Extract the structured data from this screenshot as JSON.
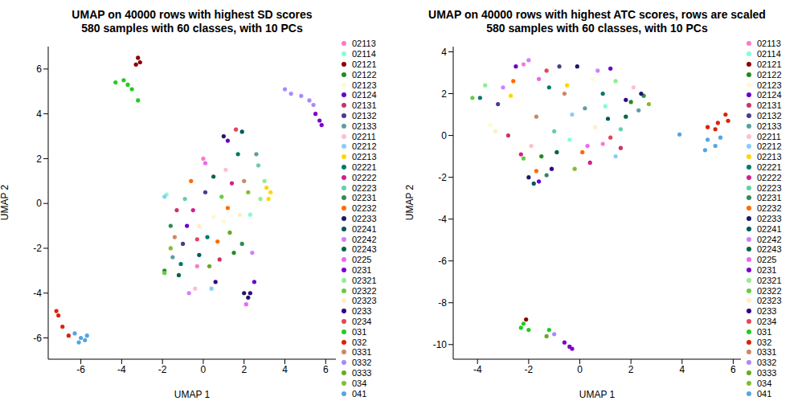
{
  "chart_data": [
    {
      "type": "scatter",
      "title": "UMAP on 40000 rows with highest SD scores",
      "subtitle": "580 samples with 60 classes, with 10 PCs",
      "x_label": "UMAP 1",
      "y_label": "UMAP 2",
      "xlim": [
        -7.6,
        6.5
      ],
      "ylim": [
        -6.95,
        7.0
      ],
      "xticks": [
        -6,
        -4,
        -2,
        0,
        2,
        4,
        6
      ],
      "yticks": [
        -6,
        -4,
        -2,
        0,
        2,
        4,
        6
      ],
      "legend": "right",
      "marker": "circle",
      "series": [
        {
          "name": "02113",
          "color": "#ff77cc",
          "x": [
            0.0,
            -0.3
          ],
          "y": [
            2.0,
            -2.8
          ]
        },
        {
          "name": "02114",
          "color": "#7fffd4",
          "x": [
            2.3,
            -1.8
          ],
          "y": [
            -0.5,
            0.4
          ]
        },
        {
          "name": "02121",
          "color": "#8b0000",
          "x": [
            -3.2,
            -3.3,
            -3.1
          ],
          "y": [
            6.5,
            6.2,
            6.3
          ]
        },
        {
          "name": "02122",
          "color": "#228b22",
          "x": [
            -1.9,
            1.5
          ],
          "y": [
            -3.0,
            -2.2
          ]
        },
        {
          "name": "02123",
          "color": "#fffacd",
          "x": [
            0.5,
            1.0
          ],
          "y": [
            -0.6,
            -0.8
          ]
        },
        {
          "name": "02124",
          "color": "#6600cc",
          "x": [
            1.2,
            -0.8,
            2.5
          ],
          "y": [
            2.8,
            -1.0,
            -3.5
          ]
        },
        {
          "name": "02131",
          "color": "#cc3366",
          "x": [
            0.8,
            -1.3
          ],
          "y": [
            -2.5,
            -0.3
          ]
        },
        {
          "name": "02132",
          "color": "#483d8b",
          "x": [
            -1.0,
            0.1
          ],
          "y": [
            -1.8,
            0.5
          ]
        },
        {
          "name": "02133",
          "color": "#5f9ea0",
          "x": [
            2.6,
            -1.5
          ],
          "y": [
            2.2,
            -2.4
          ]
        },
        {
          "name": "02211",
          "color": "#ffc0cb",
          "x": [
            1.1,
            -0.4
          ],
          "y": [
            1.5,
            -3.8
          ]
        },
        {
          "name": "02212",
          "color": "#87cefa",
          "x": [
            -1.9,
            0.4
          ],
          "y": [
            0.3,
            -3.8
          ]
        },
        {
          "name": "02213",
          "color": "#ffd700",
          "x": [
            3.3,
            3.2,
            3.1
          ],
          "y": [
            0.5,
            0.2,
            0.7
          ]
        },
        {
          "name": "02221",
          "color": "#00796b",
          "x": [
            0.2,
            1.7,
            -1.1
          ],
          "y": [
            -1.5,
            2.2,
            -2.7
          ]
        },
        {
          "name": "02222",
          "color": "#d02090",
          "x": [
            1.4,
            -0.5
          ],
          "y": [
            0.9,
            -0.3
          ]
        },
        {
          "name": "02223",
          "color": "#66cdaa",
          "x": [
            2.7,
            -0.9
          ],
          "y": [
            1.7,
            0.2
          ]
        },
        {
          "name": "02231",
          "color": "#2e8b57",
          "x": [
            -1.6,
            1.9
          ],
          "y": [
            -1.0,
            -1.8
          ]
        },
        {
          "name": "02232",
          "color": "#ff6a00",
          "x": [
            1.2,
            0.7,
            -0.6
          ],
          "y": [
            -0.2,
            -1.7,
            1.0
          ]
        },
        {
          "name": "02233",
          "color": "#1a1a66",
          "x": [
            2.2,
            2.0,
            1.0
          ],
          "y": [
            -4.2,
            -4.0,
            3.0
          ]
        },
        {
          "name": "02241",
          "color": "#00595c",
          "x": [
            -0.2,
            1.9
          ],
          "y": [
            -2.3,
            3.2
          ]
        },
        {
          "name": "02242",
          "color": "#d080ff",
          "x": [
            2.4,
            -0.7
          ],
          "y": [
            -2.2,
            -4.0
          ]
        },
        {
          "name": "02243",
          "color": "#006644",
          "x": [
            0.5,
            -1.2
          ],
          "y": [
            1.2,
            -3.2
          ]
        },
        {
          "name": "0225",
          "color": "#ee66ee",
          "x": [
            0.1,
            2.1
          ],
          "y": [
            1.8,
            -4.5
          ]
        },
        {
          "name": "0231",
          "color": "#7a00cc",
          "x": [
            5.7,
            5.5,
            5.8
          ],
          "y": [
            3.7,
            4.0,
            3.5
          ]
        },
        {
          "name": "02321",
          "color": "#90ee90",
          "x": [
            2.8,
            3.0
          ],
          "y": [
            0.2,
            1.0
          ]
        },
        {
          "name": "02322",
          "color": "#66cc44",
          "x": [
            -1.9,
            0.9
          ],
          "y": [
            -3.1,
            0.3
          ]
        },
        {
          "name": "02323",
          "color": "#ffefc0",
          "x": [
            1.8,
            -0.2
          ],
          "y": [
            -0.5,
            -1.0
          ]
        },
        {
          "name": "0233",
          "color": "#330088",
          "x": [
            0.6,
            2.3
          ],
          "y": [
            -3.5,
            -4.0
          ]
        },
        {
          "name": "0234",
          "color": "#e8445a",
          "x": [
            1.6,
            -0.3
          ],
          "y": [
            3.3,
            -1.6
          ]
        },
        {
          "name": "031",
          "color": "#22cc22",
          "x": [
            -4.3,
            -3.9,
            -3.5,
            -3.2,
            -3.7
          ],
          "y": [
            5.4,
            5.5,
            5.1,
            4.6,
            5.3
          ]
        },
        {
          "name": "032",
          "color": "#dd2200",
          "x": [
            -7.1,
            -6.9,
            -6.6,
            -7.2
          ],
          "y": [
            -5.0,
            -5.5,
            -5.9,
            -4.8
          ]
        },
        {
          "name": "0331",
          "color": "#cc8866",
          "x": [
            2.0,
            -1.4
          ],
          "y": [
            1.0,
            -1.5
          ]
        },
        {
          "name": "0332",
          "color": "#aa88ff",
          "x": [
            4.3,
            4.8,
            5.2,
            5.4,
            4.0
          ],
          "y": [
            4.9,
            4.8,
            4.6,
            4.4,
            5.1
          ]
        },
        {
          "name": "0333",
          "color": "#66aa22",
          "x": [
            0.3,
            1.3
          ],
          "y": [
            -2.8,
            -1.3
          ]
        },
        {
          "name": "034",
          "color": "#88bb33",
          "x": [
            -1.6,
            2.2
          ],
          "y": [
            -2.0,
            0.5
          ]
        },
        {
          "name": "041",
          "color": "#55a5e0",
          "x": [
            -6.3,
            -6.0,
            -5.7,
            -6.1,
            -5.8
          ],
          "y": [
            -5.8,
            -6.0,
            -5.9,
            -6.2,
            -6.1
          ]
        }
      ]
    },
    {
      "type": "scatter",
      "title": "UMAP on 40000 rows with highest ATC scores, rows are scaled",
      "subtitle": "580 samples with 60 classes, with 10 PCs",
      "x_label": "UMAP 1",
      "y_label": "UMAP 2",
      "xlim": [
        -4.95,
        6.3
      ],
      "ylim": [
        -10.7,
        4.25
      ],
      "xticks": [
        -4,
        -2,
        0,
        2,
        4,
        6
      ],
      "yticks": [
        -10,
        -8,
        -6,
        -4,
        -2,
        0,
        2,
        4
      ],
      "legend": "right",
      "marker": "circle",
      "series": [
        {
          "name": "02113",
          "color": "#ff77cc",
          "x": [
            -2.2,
            0.9
          ],
          "y": [
            3.4,
            -0.4
          ]
        },
        {
          "name": "02114",
          "color": "#7fffd4",
          "x": [
            -0.4,
            1.0
          ],
          "y": [
            -0.2,
            1.4
          ]
        },
        {
          "name": "02121",
          "color": "#8b0000",
          "x": [
            -2.1
          ],
          "y": [
            -8.8
          ]
        },
        {
          "name": "02122",
          "color": "#228b22",
          "x": [
            -1.5,
            2.0
          ],
          "y": [
            -1.0,
            1.6
          ]
        },
        {
          "name": "02123",
          "color": "#fffacd",
          "x": [
            -3.5,
            0.5
          ],
          "y": [
            0.5,
            2.7
          ]
        },
        {
          "name": "02124",
          "color": "#6600cc",
          "x": [
            -2.5,
            -1.6,
            1.2
          ],
          "y": [
            3.3,
            -2.2,
            3.2
          ]
        },
        {
          "name": "02131",
          "color": "#cc3366",
          "x": [
            -2.8,
            1.6
          ],
          "y": [
            0.0,
            -0.6
          ]
        },
        {
          "name": "02132",
          "color": "#483d8b",
          "x": [
            -0.8,
            -3.2
          ],
          "y": [
            3.3,
            1.5
          ]
        },
        {
          "name": "02133",
          "color": "#5f9ea0",
          "x": [
            0.2,
            2.3
          ],
          "y": [
            1.3,
            1.2
          ]
        },
        {
          "name": "02211",
          "color": "#ffc0cb",
          "x": [
            -1.9,
            2.1
          ],
          "y": [
            -0.5,
            2.3
          ]
        },
        {
          "name": "02212",
          "color": "#87cefa",
          "x": [
            -0.3,
            1.4
          ],
          "y": [
            1.0,
            -1.0
          ]
        },
        {
          "name": "02213",
          "color": "#ffd700",
          "x": [
            -0.5,
            -2.7
          ],
          "y": [
            2.4,
            1.9
          ]
        },
        {
          "name": "02221",
          "color": "#00796b",
          "x": [
            -1.2,
            -3.9,
            0.9
          ],
          "y": [
            2.3,
            1.8,
            2.0
          ]
        },
        {
          "name": "02222",
          "color": "#d02090",
          "x": [
            -2.3,
            0.4
          ],
          "y": [
            -0.9,
            -1.3
          ]
        },
        {
          "name": "02223",
          "color": "#66cdaa",
          "x": [
            -1.0,
            1.6
          ],
          "y": [
            0.2,
            0.3
          ]
        },
        {
          "name": "02231",
          "color": "#2e8b57",
          "x": [
            -1.3,
            2.5
          ],
          "y": [
            -1.9,
            1.9
          ]
        },
        {
          "name": "02232",
          "color": "#ff6a00",
          "x": [
            -2.6,
            0.1,
            -1.7
          ],
          "y": [
            2.6,
            -0.8,
            -1.7
          ]
        },
        {
          "name": "02233",
          "color": "#1a1a66",
          "x": [
            -0.1,
            -2.0,
            2.4
          ],
          "y": [
            3.3,
            -2.0,
            2.0
          ]
        },
        {
          "name": "02241",
          "color": "#00595c",
          "x": [
            -1.8,
            1.1
          ],
          "y": [
            -2.3,
            0.8
          ]
        },
        {
          "name": "02242",
          "color": "#d080ff",
          "x": [
            -2.0,
            0.7,
            -3.0
          ],
          "y": [
            3.6,
            3.1,
            2.3
          ]
        },
        {
          "name": "02243",
          "color": "#006644",
          "x": [
            -0.9,
            1.8
          ],
          "y": [
            -0.8,
            0.9
          ]
        },
        {
          "name": "0225",
          "color": "#ee66ee",
          "x": [
            -1.6,
            0.3
          ],
          "y": [
            2.7,
            -0.5
          ]
        },
        {
          "name": "0231",
          "color": "#7a00cc",
          "x": [
            -0.4,
            -0.6,
            -0.3
          ],
          "y": [
            -10.1,
            -9.9,
            -10.2
          ]
        },
        {
          "name": "02321",
          "color": "#90ee90",
          "x": [
            -3.7,
            1.4
          ],
          "y": [
            2.4,
            2.6
          ]
        },
        {
          "name": "02322",
          "color": "#66cc44",
          "x": [
            -4.2,
            -2.2
          ],
          "y": [
            1.8,
            -1.1
          ]
        },
        {
          "name": "02323",
          "color": "#ffefc0",
          "x": [
            -3.3,
            0.6
          ],
          "y": [
            0.2,
            0.4
          ]
        },
        {
          "name": "0233",
          "color": "#330088",
          "x": [
            -1.1,
            1.8
          ],
          "y": [
            -1.6,
            1.7
          ]
        },
        {
          "name": "0234",
          "color": "#e8445a",
          "x": [
            -1.3,
            1.2
          ],
          "y": [
            3.1,
            -0.1
          ]
        },
        {
          "name": "031",
          "color": "#22cc22",
          "x": [
            -2.2,
            -2.0,
            -1.2,
            -2.3
          ],
          "y": [
            -9.0,
            -9.3,
            -9.3,
            -9.2
          ]
        },
        {
          "name": "032",
          "color": "#dd2200",
          "x": [
            5.0,
            5.4,
            5.7,
            5.3,
            5.8
          ],
          "y": [
            0.4,
            0.6,
            1.0,
            0.3,
            0.7
          ]
        },
        {
          "name": "0331",
          "color": "#cc8866",
          "x": [
            -1.7,
            -0.6
          ],
          "y": [
            0.9,
            2.0
          ]
        },
        {
          "name": "0332",
          "color": "#aa88ff",
          "x": [
            -1.0
          ],
          "y": [
            -9.5
          ]
        },
        {
          "name": "0333",
          "color": "#66aa22",
          "x": [
            -1.3
          ],
          "y": [
            -9.6
          ]
        },
        {
          "name": "034",
          "color": "#88bb33",
          "x": [
            -0.2,
            2.7
          ],
          "y": [
            -1.6,
            1.5
          ]
        },
        {
          "name": "041",
          "color": "#55a5e0",
          "x": [
            5.0,
            5.3,
            4.9,
            5.5,
            3.9
          ],
          "y": [
            -0.2,
            -0.5,
            -0.7,
            -0.1,
            0.05
          ]
        }
      ]
    }
  ]
}
